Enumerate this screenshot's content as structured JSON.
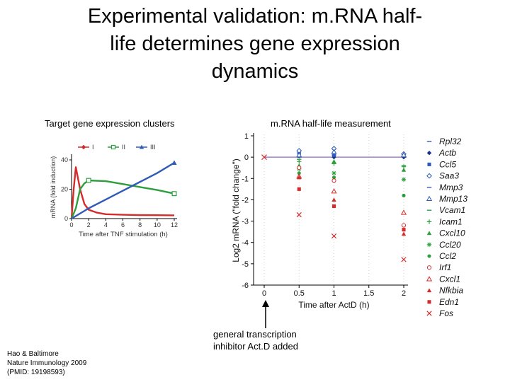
{
  "slide": {
    "title_lines": [
      "Experimental validation: m.RNA half-",
      "life determines gene expression",
      "dynamics"
    ]
  },
  "left_panel_label": "Target gene expression clusters",
  "right_panel_label": "m.RNA half-life measurement",
  "citation_lines": [
    "Hao & Baltimore",
    "Nature Immunology 2009",
    "(PMID: 19198593)"
  ],
  "annotation_lines": [
    "general transcription",
    "inhibitor Act.D added"
  ],
  "colors": {
    "red": "#d62b2b",
    "green": "#2e9e3c",
    "blue": "#2f5bb7"
  },
  "chart_data": [
    {
      "type": "line",
      "title": "Target gene expression clusters",
      "xlabel": "Time after TNF stimulation (h)",
      "ylabel": "mRNA (fold induction)",
      "xlim": [
        0,
        12
      ],
      "ylim": [
        0,
        40
      ],
      "xticks": [
        0,
        2,
        4,
        6,
        8,
        10,
        12
      ],
      "yticks": [
        0,
        20,
        40
      ],
      "series": [
        {
          "name": "I",
          "color": "#d62b2b",
          "marker": "diamond",
          "x": [
            0,
            0.25,
            0.5,
            1,
            1.5,
            2,
            3,
            4,
            6,
            8,
            10,
            12
          ],
          "y": [
            0,
            20,
            35,
            20,
            10,
            6,
            4,
            3,
            2.6,
            2.4,
            2.3,
            2.2
          ]
        },
        {
          "name": "II",
          "color": "#2e9e3c",
          "marker": "square",
          "x": [
            0,
            0.5,
            1,
            1.5,
            2,
            4,
            6,
            8,
            10,
            12
          ],
          "y": [
            0,
            7,
            20,
            24,
            26,
            25.5,
            23.5,
            21.5,
            19.5,
            17
          ]
        },
        {
          "name": "III",
          "color": "#2f5bb7",
          "marker": "triangle",
          "x": [
            0,
            2,
            4,
            6,
            8,
            10,
            12
          ],
          "y": [
            0,
            7,
            13,
            19,
            25,
            31,
            38
          ]
        }
      ]
    },
    {
      "type": "scatter",
      "title": "m.RNA half-life measurement",
      "xlabel": "Time after ActD (h)",
      "ylabel": "Log2 mRNA (\"fold change\")",
      "xlim": [
        0,
        2
      ],
      "ylim": [
        -6,
        1
      ],
      "xticks": [
        0,
        0.5,
        1,
        1.5,
        2
      ],
      "yticks": [
        1,
        0,
        -1,
        -2,
        -3,
        -4,
        -5,
        -6
      ],
      "reference": {
        "name": "Rpl32",
        "y": 0
      },
      "series": [
        {
          "name": "Rpl32",
          "color": "#2f5bb7",
          "marker": "dash",
          "x": [],
          "y": []
        },
        {
          "name": "Actb",
          "color": "#1c2f8a",
          "marker": "diamond",
          "x": [
            0.5,
            1,
            2
          ],
          "y": [
            0.05,
            0.0,
            0.0
          ]
        },
        {
          "name": "Ccl5",
          "color": "#2f5bb7",
          "marker": "square",
          "x": [
            0.5,
            1,
            2
          ],
          "y": [
            0.2,
            0.1,
            0.1
          ]
        },
        {
          "name": "Saa3",
          "color": "#2f5bb7",
          "marker": "diamond-open",
          "x": [
            0.5,
            1,
            2
          ],
          "y": [
            0.3,
            0.4,
            0.15
          ]
        },
        {
          "name": "Mmp3",
          "color": "#2f5bb7",
          "marker": "dash",
          "x": [
            0.5,
            1,
            2
          ],
          "y": [
            0.0,
            0.1,
            0.05
          ]
        },
        {
          "name": "Mmp13",
          "color": "#2f5bb7",
          "marker": "triangle-open",
          "x": [
            0.5,
            1,
            2
          ],
          "y": [
            0.1,
            0.25,
            0.1
          ]
        },
        {
          "name": "Vcam1",
          "color": "#2e9e3c",
          "marker": "dash",
          "x": [
            0.5,
            1,
            2
          ],
          "y": [
            -0.1,
            -0.3,
            -0.4
          ]
        },
        {
          "name": "Icam1",
          "color": "#2e9e3c",
          "marker": "plus",
          "x": [
            0.5,
            1,
            2
          ],
          "y": [
            -0.2,
            -0.3,
            -0.45
          ]
        },
        {
          "name": "Cxcl10",
          "color": "#2e9e3c",
          "marker": "triangle",
          "x": [
            0.5,
            1,
            2
          ],
          "y": [
            -0.4,
            -0.2,
            -0.6
          ]
        },
        {
          "name": "Ccl20",
          "color": "#2e9e3c",
          "marker": "star",
          "x": [
            0.5,
            1,
            2
          ],
          "y": [
            -0.55,
            -0.75,
            -1.05
          ]
        },
        {
          "name": "Ccl2",
          "color": "#2e9e3c",
          "marker": "circle",
          "x": [
            0.5,
            1,
            2
          ],
          "y": [
            -0.75,
            -0.95,
            -1.8
          ]
        },
        {
          "name": "Irf1",
          "color": "#d62b2b",
          "marker": "circle-open",
          "x": [
            0.5,
            1,
            2
          ],
          "y": [
            -0.5,
            -1.1,
            -3.2
          ]
        },
        {
          "name": "Cxcl1",
          "color": "#d62b2b",
          "marker": "triangle-open",
          "x": [
            0.5,
            1,
            2
          ],
          "y": [
            -0.9,
            -1.6,
            -2.6
          ]
        },
        {
          "name": "Nfkbia",
          "color": "#d62b2b",
          "marker": "triangle",
          "x": [
            0.5,
            1,
            2
          ],
          "y": [
            -0.95,
            -2.0,
            -3.6
          ]
        },
        {
          "name": "Edn1",
          "color": "#d62b2b",
          "marker": "square",
          "x": [
            0.5,
            1,
            2
          ],
          "y": [
            -1.5,
            -2.3,
            -3.4
          ]
        },
        {
          "name": "Fos",
          "color": "#d62b2b",
          "marker": "x",
          "x": [
            0.5,
            1,
            2
          ],
          "y": [
            -2.7,
            -3.7,
            -4.8
          ]
        }
      ],
      "origin_marker": {
        "x": 0,
        "y": 0,
        "color": "#d62b2b",
        "marker": "x"
      }
    }
  ]
}
